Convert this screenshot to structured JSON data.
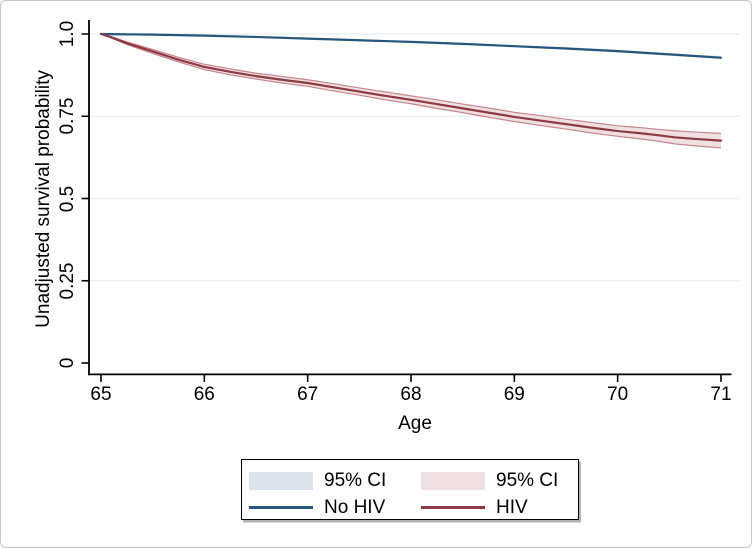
{
  "figure": {
    "y_axis_title": "Unadjusted survival probability",
    "x_axis_title": "Age",
    "y_ticks": [
      {
        "label": "1.0",
        "value": 1.0
      },
      {
        "label": "0.75",
        "value": 0.75
      },
      {
        "label": "0.5",
        "value": 0.5
      },
      {
        "label": "0.25",
        "value": 0.25
      },
      {
        "label": "0",
        "value": 0
      }
    ],
    "x_ticks": [
      {
        "label": "65",
        "value": 65
      },
      {
        "label": "66",
        "value": 66
      },
      {
        "label": "67",
        "value": 67
      },
      {
        "label": "68",
        "value": 68
      },
      {
        "label": "69",
        "value": 69
      },
      {
        "label": "70",
        "value": 70
      },
      {
        "label": "71",
        "value": 71
      }
    ]
  },
  "legend": {
    "items": [
      {
        "label": "95% CI",
        "type": "swatch",
        "color": "#dbe2eb"
      },
      {
        "label": "95% CI",
        "type": "swatch",
        "color": "#efe0e1"
      },
      {
        "label": "No HIV",
        "type": "line",
        "color": "#26567d"
      },
      {
        "label": "HIV",
        "type": "line",
        "color": "#8f3a42"
      }
    ]
  },
  "colors": {
    "no_hiv_line": "#26567d",
    "hiv_line": "#8f3a42",
    "no_hiv_ci_fill": "#dbe2eb",
    "hiv_ci_fill": "#efe0e1",
    "hiv_ci_edge": "#c8868e",
    "gridline": "#e8edf0",
    "axis": "#000000"
  },
  "chart_data": {
    "type": "line",
    "title": "",
    "xlabel": "Age",
    "ylabel": "Unadjusted survival probability",
    "xlim": [
      65,
      71
    ],
    "ylim": [
      0,
      1.0
    ],
    "x_tick_values": [
      65,
      66,
      67,
      68,
      69,
      70,
      71
    ],
    "y_tick_values": [
      0,
      0.25,
      0.5,
      0.75,
      1.0
    ],
    "grid": "horizontal-only",
    "legend_position": "bottom",
    "series": [
      {
        "name": "No HIV",
        "color": "#26567d",
        "ci_label": "95% CI",
        "ci_fill": "#dbe2eb",
        "x": [
          65,
          65.5,
          66,
          66.5,
          67,
          67.5,
          68,
          68.5,
          69,
          69.5,
          70,
          70.5,
          71
        ],
        "y": [
          1.0,
          0.998,
          0.995,
          0.991,
          0.986,
          0.981,
          0.976,
          0.97,
          0.963,
          0.956,
          0.948,
          0.938,
          0.928
        ],
        "ci_half_width": [
          0.0,
          0.001,
          0.002,
          0.002,
          0.002,
          0.003,
          0.003,
          0.003,
          0.003,
          0.004,
          0.004,
          0.004,
          0.005
        ]
      },
      {
        "name": "HIV",
        "color": "#8f3a42",
        "ci_label": "95% CI",
        "ci_fill": "#efe0e1",
        "ci_edge": "#c8868e",
        "x": [
          65,
          65.1,
          65.25,
          65.5,
          65.75,
          66,
          66.25,
          66.5,
          66.75,
          67,
          67.25,
          67.5,
          67.75,
          68,
          68.25,
          68.5,
          68.75,
          69,
          69.25,
          69.5,
          69.75,
          70,
          70.2,
          70.4,
          70.55,
          70.75,
          71
        ],
        "y": [
          1.0,
          0.99,
          0.972,
          0.947,
          0.922,
          0.9,
          0.885,
          0.872,
          0.861,
          0.851,
          0.838,
          0.825,
          0.812,
          0.8,
          0.787,
          0.774,
          0.761,
          0.748,
          0.737,
          0.726,
          0.715,
          0.705,
          0.699,
          0.692,
          0.686,
          0.681,
          0.676
        ],
        "ci_half_width": [
          0.0,
          0.002,
          0.004,
          0.006,
          0.007,
          0.008,
          0.009,
          0.009,
          0.01,
          0.01,
          0.011,
          0.011,
          0.012,
          0.012,
          0.013,
          0.013,
          0.014,
          0.014,
          0.015,
          0.015,
          0.016,
          0.016,
          0.017,
          0.018,
          0.02,
          0.021,
          0.022
        ]
      }
    ]
  }
}
